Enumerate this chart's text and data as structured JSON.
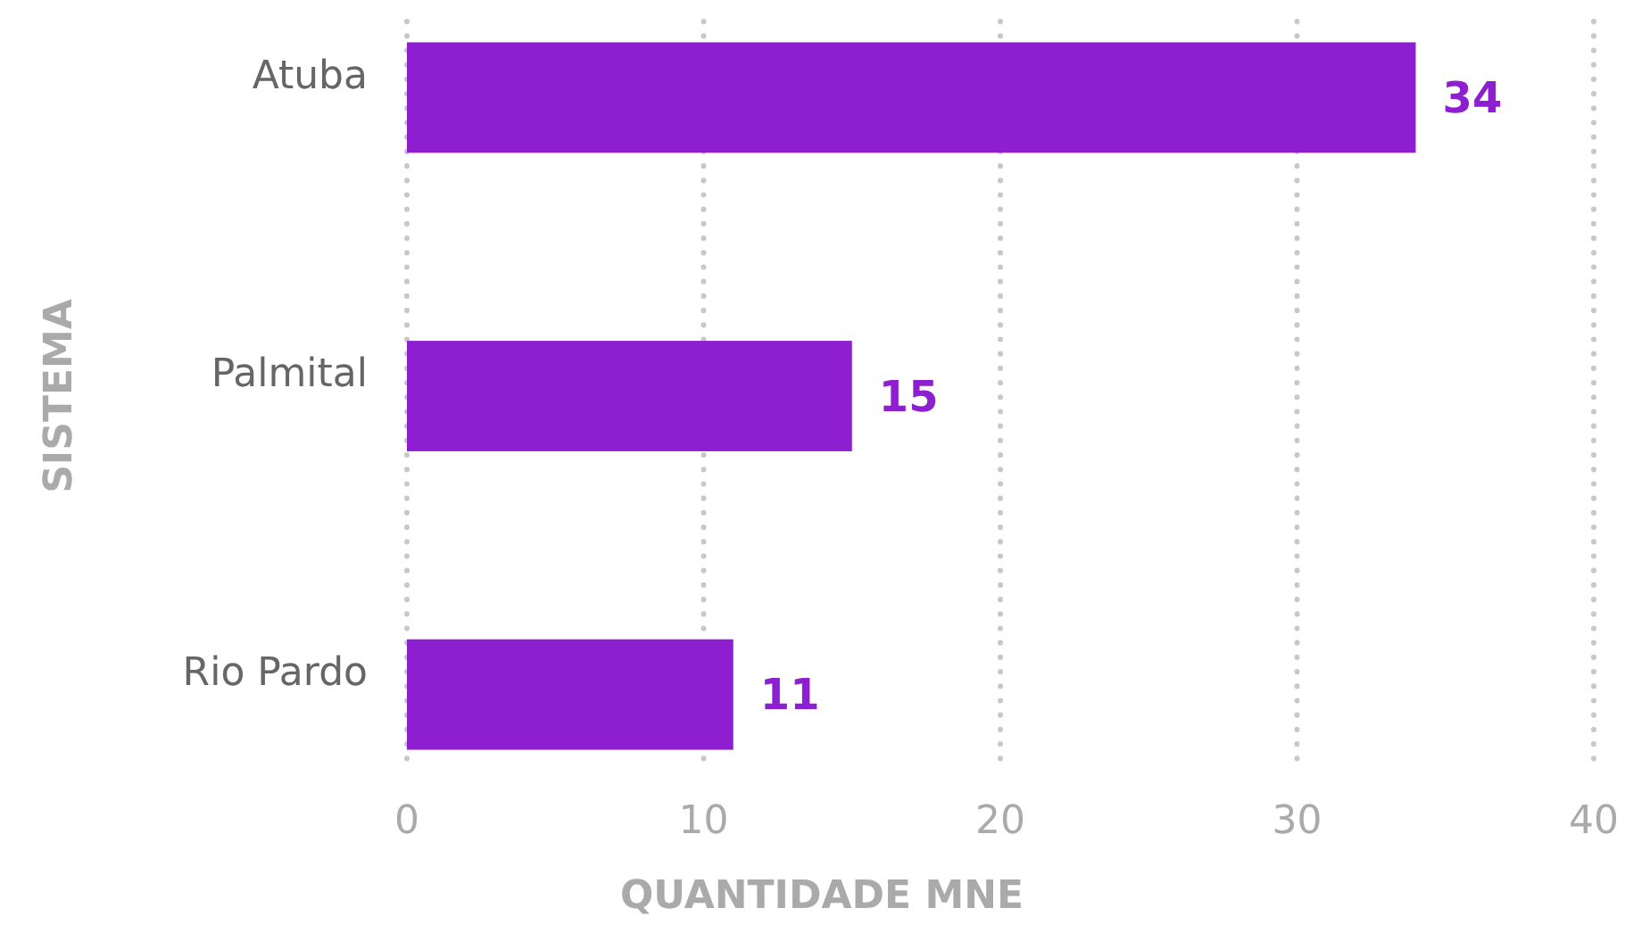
{
  "chart_data": {
    "type": "bar",
    "orientation": "horizontal",
    "ylabel": "SISTEMA",
    "xlabel": "QUANTIDADE MNE",
    "categories": [
      "Atuba",
      "Palmital",
      "Rio Pardo"
    ],
    "values": [
      34,
      15,
      11
    ],
    "color": "#8e1fd1",
    "xlim": [
      0,
      40
    ],
    "xticks": [
      0,
      10,
      20,
      30,
      40
    ],
    "grid": "x",
    "data_labels": true
  }
}
